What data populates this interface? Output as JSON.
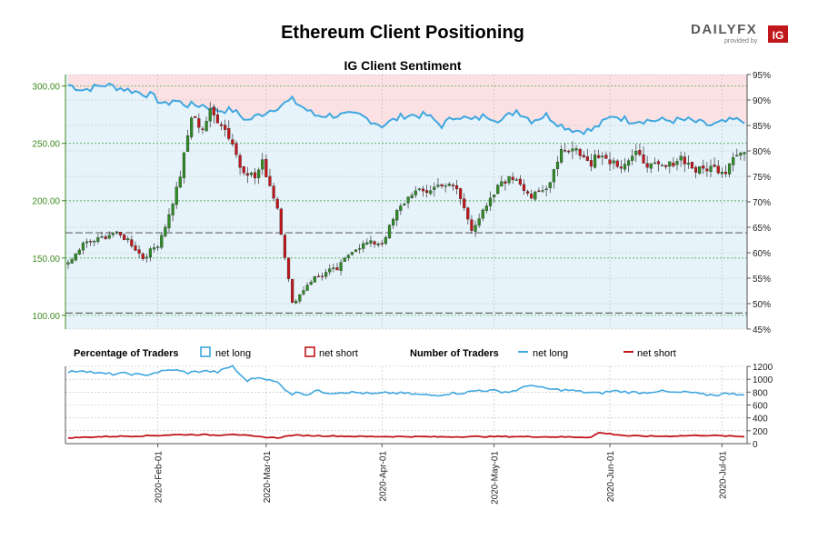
{
  "header": {
    "title": "Ethereum Client Positioning",
    "brand_name": "DAILYFX",
    "brand_tagline": "provided by",
    "brand_logo": "IG"
  },
  "chart_data": [
    {
      "type": "candlestick",
      "title": "IG Client Sentiment",
      "subtitle": "",
      "y_left_label": "",
      "y_left_ticks": [
        "100.00",
        "150.00",
        "200.00",
        "250.00",
        "300.00"
      ],
      "y_left_range": [
        88,
        310
      ],
      "y_right_label": "",
      "y_right_ticks": [
        "45%",
        "50%",
        "55%",
        "60%",
        "65%",
        "70%",
        "75%",
        "80%",
        "85%",
        "90%",
        "95%"
      ],
      "y_right_range": [
        45,
        95
      ],
      "reference_lines": [
        102,
        172
      ],
      "price_anchors": {
        "note": "approximate daily closes; first date 2020-01-08, last date 2020-07-07",
        "dates_index": [
          0,
          4,
          8,
          12,
          16,
          20,
          24,
          27,
          30,
          33,
          36,
          38,
          41,
          44,
          46,
          50,
          52,
          56,
          60,
          62,
          64,
          66,
          68,
          70,
          72,
          76,
          80,
          84,
          88,
          92,
          96,
          100,
          104,
          108,
          112,
          116,
          120,
          124,
          128,
          132,
          136,
          140,
          141,
          144,
          148,
          152,
          156,
          160,
          164,
          168,
          172,
          176,
          178,
          181
        ],
        "close": [
          144,
          162,
          166,
          172,
          166,
          150,
          162,
          187,
          222,
          273,
          263,
          277,
          268,
          250,
          230,
          220,
          233,
          194,
          110,
          118,
          127,
          133,
          135,
          139,
          140,
          157,
          163,
          163,
          190,
          207,
          208,
          215,
          210,
          176,
          194,
          217,
          220,
          203,
          210,
          245,
          245,
          230,
          243,
          237,
          231,
          240,
          230,
          229,
          238,
          226,
          229,
          226,
          241,
          242
        ]
      },
      "sentiment_long_pct_anchors": {
        "index": [
          0,
          4,
          10,
          16,
          22,
          26,
          28,
          32,
          36,
          40,
          44,
          48,
          54,
          60,
          66,
          72,
          78,
          84,
          90,
          96,
          100,
          104,
          108,
          112,
          116,
          120,
          124,
          128,
          132,
          136,
          140,
          144,
          146,
          150,
          154,
          160,
          166,
          172,
          178,
          181
        ],
        "values": [
          93,
          92,
          93,
          92,
          91,
          89,
          90,
          89,
          89,
          88,
          88,
          86,
          88,
          90,
          87,
          87,
          87,
          85,
          87,
          87,
          85,
          87,
          86,
          87,
          86,
          88,
          86,
          87,
          85,
          84,
          84,
          86,
          87,
          86,
          86,
          86,
          86,
          85,
          86,
          86
        ]
      }
    },
    {
      "type": "line",
      "title": "Number of Traders",
      "y_ticks": [
        "0",
        "200",
        "400",
        "600",
        "800",
        "1000",
        "1200"
      ],
      "y_range": [
        0,
        1200
      ],
      "series": [
        {
          "name": "net long",
          "color": "#3fa7e0",
          "anchor_index": [
            0,
            4,
            8,
            12,
            16,
            20,
            24,
            28,
            32,
            36,
            40,
            44,
            46,
            48,
            50,
            52,
            54,
            56,
            58,
            60,
            62,
            64,
            66,
            70,
            74,
            78,
            82,
            86,
            90,
            94,
            98,
            102,
            106,
            110,
            114,
            118,
            122,
            124,
            126,
            130,
            134,
            138,
            142,
            146,
            150,
            154,
            158,
            162,
            166,
            170,
            174,
            178,
            181
          ],
          "values": [
            1110,
            1140,
            1090,
            1080,
            1090,
            1060,
            1110,
            1150,
            1100,
            1130,
            1110,
            1210,
            1060,
            980,
            1020,
            1030,
            980,
            950,
            850,
            770,
            800,
            760,
            820,
            790,
            800,
            790,
            770,
            790,
            780,
            760,
            750,
            780,
            790,
            830,
            820,
            800,
            870,
            920,
            870,
            840,
            830,
            800,
            780,
            820,
            800,
            790,
            820,
            790,
            800,
            760,
            760,
            790,
            740
          ]
        },
        {
          "name": "net short",
          "color": "#c0171c",
          "anchor_index": [
            0,
            10,
            20,
            30,
            36,
            40,
            44,
            50,
            56,
            60,
            70,
            80,
            90,
            100,
            110,
            120,
            130,
            140,
            142,
            150,
            160,
            170,
            181
          ],
          "values": [
            90,
            110,
            120,
            140,
            140,
            130,
            150,
            110,
            90,
            130,
            120,
            110,
            110,
            105,
            110,
            110,
            105,
            100,
            170,
            120,
            115,
            130,
            110
          ]
        }
      ]
    }
  ],
  "legend": {
    "pct_title": "Percentage of Traders",
    "pct_long": "net long",
    "pct_short": "net short",
    "num_title": "Number of Traders",
    "num_long": "net long",
    "num_short": "net short"
  },
  "x_axis": {
    "ticks": [
      "2020-Feb-01",
      "2020-Mar-01",
      "2020-Apr-01",
      "2020-May-01",
      "2020-Jun-01",
      "2020-Jul-01"
    ],
    "tick_day_index": [
      24,
      53,
      84,
      114,
      145,
      175
    ],
    "total_days": 182
  },
  "colors": {
    "up": "#2f8a25",
    "down": "#c0171c",
    "long": "#3fa7e0",
    "short_fill": "#fbe1e3",
    "long_fill": "#e6f3fa",
    "axis_green": "#3d8a1f",
    "grid_green": "#4caf50",
    "grid_gray": "#bbbbbb",
    "title": "#000000"
  }
}
